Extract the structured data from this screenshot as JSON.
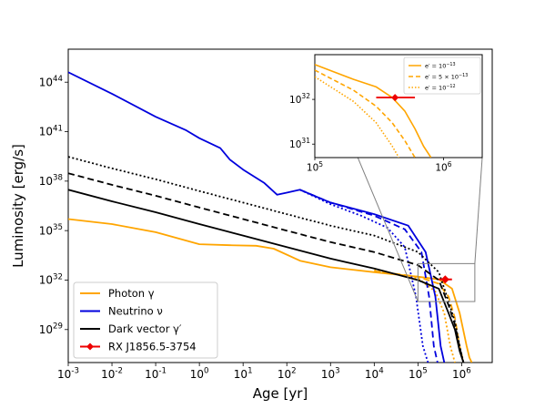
{
  "chart_data": [
    {
      "type": "line",
      "xlabel": "Age [yr]",
      "ylabel": "Luminosity [erg/s]",
      "xscale": "log",
      "yscale": "log",
      "xlim": [
        0.001,
        5000000
      ],
      "ylim": [
        1e+27,
        1e+46
      ],
      "x_ticks": [
        {
          "value": 0.001,
          "label": "10^-3"
        },
        {
          "value": 0.01,
          "label": "10^-2"
        },
        {
          "value": 0.1,
          "label": "10^-1"
        },
        {
          "value": 1,
          "label": "10^0"
        },
        {
          "value": 10,
          "label": "10^1"
        },
        {
          "value": 100,
          "label": "10^2"
        },
        {
          "value": 1000,
          "label": "10^3"
        },
        {
          "value": 10000,
          "label": "10^4"
        },
        {
          "value": 100000,
          "label": "10^5"
        },
        {
          "value": 1000000,
          "label": "10^6"
        }
      ],
      "y_ticks": [
        {
          "value": 1e+29,
          "label": "10^29"
        },
        {
          "value": 1e+32,
          "label": "10^32"
        },
        {
          "value": 1e+35,
          "label": "10^35"
        },
        {
          "value": 1e+38,
          "label": "10^38"
        },
        {
          "value": 1e+41,
          "label": "10^41"
        },
        {
          "value": 1e+44,
          "label": "10^44"
        }
      ],
      "grid": false,
      "legend_position": "lower-left",
      "legend": [
        {
          "label": "Photon γ",
          "color": "#ffa500",
          "style": "line"
        },
        {
          "label": "Neutrino ν",
          "color": "#0000dd",
          "style": "line"
        },
        {
          "label": "Dark vector γ′",
          "color": "#000000",
          "style": "line"
        },
        {
          "label": "RX J1856.5-3754",
          "color": "#ee0000",
          "style": "errorbar"
        }
      ],
      "series": [
        {
          "group": "photon",
          "color": "#ffa500",
          "dash": "solid",
          "x": [
            0.001,
            0.01,
            0.1,
            1,
            5,
            20,
            50,
            200,
            1000,
            10000,
            100000,
            300000,
            600000,
            900000,
            1300000,
            1500000,
            1700000
          ],
          "y": [
            5e+35,
            2.5e+35,
            8e+34,
            1.5e+34,
            1.3e+34,
            1.2e+34,
            8e+33,
            1.5e+33,
            6e+32,
            3e+32,
            1.6e+32,
            1.1e+32,
            3e+31,
            1e+30,
            1e+28,
            2e+27,
            1e+27
          ]
        },
        {
          "group": "photon",
          "color": "#ffa500",
          "dash": "dashed",
          "x": [
            10000,
            100000,
            300000,
            500000,
            700000,
            900000,
            1100000
          ],
          "y": [
            3.5e+32,
            1.6e+32,
            6e+31,
            1e+31,
            5e+29,
            1e+28,
            1e+27
          ]
        },
        {
          "group": "photon",
          "color": "#ffa500",
          "dash": "dotted",
          "x": [
            10000,
            100000,
            250000,
            400000,
            550000,
            700000
          ],
          "y": [
            4e+32,
            1.3e+32,
            2e+31,
            1e+30,
            1e+28,
            1e+27
          ]
        },
        {
          "group": "neutrino",
          "color": "#0000dd",
          "dash": "solid",
          "x": [
            0.001,
            0.01,
            0.1,
            0.5,
            1,
            3,
            5,
            10,
            30,
            60,
            100,
            200,
            1000,
            10000,
            60000,
            150000,
            250000,
            330000,
            400000
          ],
          "y": [
            4e+44,
            2e+43,
            8e+41,
            1.2e+41,
            4e+40,
            1e+40,
            2e+39,
            5e+38,
            8e+37,
            1.5e+37,
            2e+37,
            3e+37,
            5e+36,
            1e+36,
            2e+35,
            5e+33,
            1e+31,
            1e+28,
            1e+27
          ]
        },
        {
          "group": "neutrino",
          "color": "#0000dd",
          "dash": "dashed",
          "x": [
            200,
            1000,
            10000,
            50000,
            120000,
            180000,
            230000,
            280000
          ],
          "y": [
            3e+37,
            5e+36,
            8e+35,
            1.2e+35,
            5e+33,
            1e+31,
            1e+28,
            1e+27
          ]
        },
        {
          "group": "neutrino",
          "color": "#0000dd",
          "dash": "dotted",
          "x": [
            200,
            1000,
            5000,
            20000,
            50000,
            90000,
            130000,
            170000
          ],
          "y": [
            3e+37,
            4e+36,
            8e+35,
            1.5e+35,
            1e+34,
            1e+31,
            1e+28,
            1e+27
          ]
        },
        {
          "group": "dark",
          "color": "#000000",
          "dash": "solid",
          "x": [
            0.001,
            0.01,
            0.1,
            1,
            10,
            100,
            1000,
            10000,
            100000,
            300000,
            500000,
            700000,
            900000,
            1100000
          ],
          "y": [
            3e+37,
            6e+36,
            1.3e+36,
            2.5e+35,
            5e+34,
            1e+34,
            2e+33,
            5e+32,
            1e+32,
            3e+31,
            1e+30,
            1e+29,
            5e+27,
            1e+27
          ]
        },
        {
          "group": "dark",
          "color": "#000000",
          "dash": "dashed",
          "x": [
            0.001,
            0.01,
            0.1,
            1,
            10,
            100,
            1000,
            10000,
            100000,
            300000,
            500000,
            700000,
            900000,
            1100000
          ],
          "y": [
            3e+38,
            6e+37,
            1.3e+37,
            2.5e+36,
            5e+35,
            1e+35,
            2e+34,
            5e+33,
            8e+32,
            1e+32,
            3e+30,
            2e+29,
            8e+27,
            1e+27
          ]
        },
        {
          "group": "dark",
          "color": "#000000",
          "dash": "dotted",
          "x": [
            0.001,
            0.01,
            0.1,
            1,
            10,
            100,
            1000,
            10000,
            100000,
            300000,
            500000,
            700000,
            900000,
            1100000
          ],
          "y": [
            3e+39,
            6e+38,
            1.3e+38,
            2.5e+37,
            5e+36,
            1e+36,
            2e+35,
            5e+34,
            5e+33,
            3e+32,
            5e+30,
            3e+29,
            1e+28,
            1e+27
          ]
        }
      ],
      "data_point": {
        "label": "RX J1856.5-3754",
        "x": 420000,
        "y": 1.1e+32,
        "x_range": [
          300000,
          600000
        ],
        "color": "#ee0000"
      }
    },
    {
      "type": "line",
      "role": "inset",
      "xscale": "log",
      "yscale": "log",
      "xlim": [
        100000,
        2000000
      ],
      "ylim": [
        5e+30,
        1e+33
      ],
      "x_ticks": [
        {
          "value": 100000,
          "label": "10^5"
        },
        {
          "value": 1000000,
          "label": "10^6"
        }
      ],
      "y_ticks": [
        {
          "value": 1e+31,
          "label": "10^31"
        },
        {
          "value": 1e+32,
          "label": "10^32"
        }
      ],
      "legend_position": "top-right",
      "legend": [
        {
          "label": "e′ = 10^−13",
          "color": "#ffa500",
          "dash": "solid"
        },
        {
          "label": "e′ = 5 × 10^−13",
          "color": "#ffa500",
          "dash": "dashed"
        },
        {
          "label": "e′ = 10^−12",
          "color": "#ffa500",
          "dash": "dotted"
        }
      ],
      "series": [
        {
          "color": "#ffa500",
          "dash": "solid",
          "x": [
            100000,
            200000,
            300000,
            400000,
            500000,
            600000,
            700000,
            800000
          ],
          "y": [
            6e+32,
            2.8e+32,
            1.9e+32,
            1.1e+32,
            5.5e+31,
            2.2e+31,
            9e+30,
            5e+30
          ]
        },
        {
          "color": "#ffa500",
          "dash": "dashed",
          "x": [
            100000,
            200000,
            300000,
            400000,
            500000,
            600000
          ],
          "y": [
            4.5e+32,
            1.6e+32,
            7e+31,
            3e+31,
            1.2e+31,
            5e+30
          ]
        },
        {
          "color": "#ffa500",
          "dash": "dotted",
          "x": [
            100000,
            200000,
            300000,
            400000,
            450000
          ],
          "y": [
            3.2e+32,
            9e+31,
            3e+31,
            9e+30,
            5e+30
          ]
        }
      ],
      "data_point": {
        "x": 420000,
        "y": 1.1e+32,
        "x_range": [
          300000,
          600000
        ],
        "color": "#ee0000"
      }
    }
  ]
}
